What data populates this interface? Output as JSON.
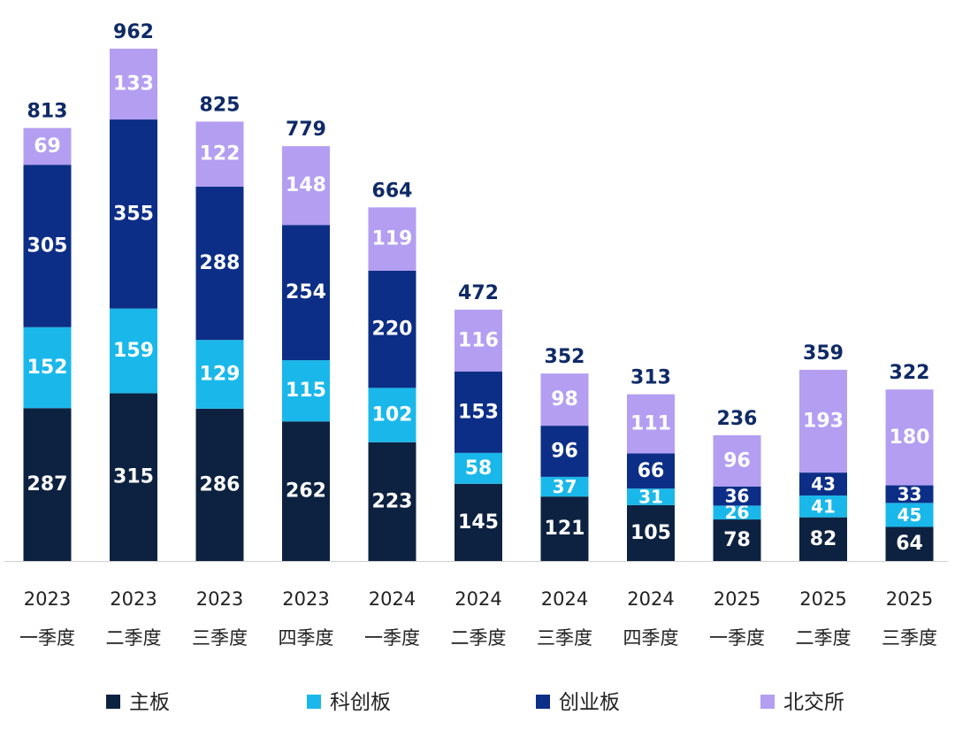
{
  "chart_data": {
    "type": "stacked-bar",
    "categories": [
      {
        "year": "2023",
        "quarter": "一季度"
      },
      {
        "year": "2023",
        "quarter": "二季度"
      },
      {
        "year": "2023",
        "quarter": "三季度"
      },
      {
        "year": "2023",
        "quarter": "四季度"
      },
      {
        "year": "2024",
        "quarter": "一季度"
      },
      {
        "year": "2024",
        "quarter": "二季度"
      },
      {
        "year": "2024",
        "quarter": "三季度"
      },
      {
        "year": "2024",
        "quarter": "四季度"
      },
      {
        "year": "2025",
        "quarter": "一季度"
      },
      {
        "year": "2025",
        "quarter": "二季度"
      },
      {
        "year": "2025",
        "quarter": "三季度"
      }
    ],
    "series": [
      {
        "name": "主板",
        "color": "#0d2240",
        "values": [
          287,
          315,
          286,
          262,
          223,
          145,
          121,
          105,
          78,
          82,
          64
        ]
      },
      {
        "name": "科创板",
        "color": "#1ab8ea",
        "values": [
          152,
          159,
          129,
          115,
          102,
          58,
          37,
          31,
          26,
          41,
          45
        ]
      },
      {
        "name": "创业板",
        "color": "#0c2e86",
        "values": [
          305,
          355,
          288,
          254,
          220,
          153,
          96,
          66,
          36,
          43,
          33
        ]
      },
      {
        "name": "北交所",
        "color": "#b39ef2",
        "values": [
          69,
          133,
          122,
          148,
          119,
          116,
          98,
          111,
          96,
          193,
          180
        ]
      }
    ],
    "totals": [
      813,
      962,
      825,
      779,
      664,
      472,
      352,
      313,
      236,
      359,
      322
    ],
    "ylim": [
      0,
      962
    ],
    "legend_position": "bottom",
    "grid": false
  }
}
